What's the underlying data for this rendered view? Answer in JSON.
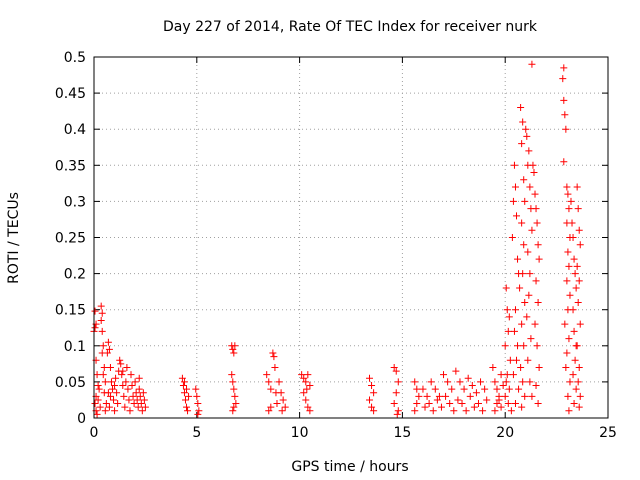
{
  "chart_data": {
    "type": "scatter",
    "title": "Day 227 of 2014, Rate Of TEC Index for receiver nurk",
    "xlabel": "GPS time / hours",
    "ylabel": "ROTI / TECUs",
    "xlim": [
      0,
      25
    ],
    "ylim": [
      0,
      0.5
    ],
    "xticks": [
      0,
      5,
      10,
      15,
      20,
      25
    ],
    "xtick_labels": [
      "0",
      "5",
      "10",
      "15",
      "20",
      "25"
    ],
    "yticks": [
      0,
      0.05,
      0.1,
      0.15,
      0.2,
      0.25,
      0.3,
      0.35,
      0.4,
      0.45,
      0.5
    ],
    "ytick_labels": [
      "0",
      "0.05",
      "0.1",
      "0.15",
      "0.2",
      "0.25",
      "0.3",
      "0.35",
      "0.4",
      "0.45",
      "0.5"
    ],
    "grid": true,
    "marker": "+",
    "color": "#ff0000",
    "series": [
      {
        "name": "ROTI",
        "points": [
          [
            0.0,
            0.12
          ],
          [
            0.05,
            0.125
          ],
          [
            0.1,
            0.13
          ],
          [
            0.05,
            0.148
          ],
          [
            0.1,
            0.08
          ],
          [
            0.15,
            0.06
          ],
          [
            0.2,
            0.045
          ],
          [
            0.1,
            0.03
          ],
          [
            0.05,
            0.02
          ],
          [
            0.1,
            0.01
          ],
          [
            0.15,
            0.005
          ],
          [
            0.2,
            0.025
          ],
          [
            0.25,
            0.04
          ],
          [
            0.3,
            0.015
          ],
          [
            0.35,
            0.155
          ],
          [
            0.4,
            0.145
          ],
          [
            0.35,
            0.135
          ],
          [
            0.4,
            0.12
          ],
          [
            0.45,
            0.1
          ],
          [
            0.4,
            0.09
          ],
          [
            0.5,
            0.07
          ],
          [
            0.55,
            0.05
          ],
          [
            0.5,
            0.035
          ],
          [
            0.6,
            0.02
          ],
          [
            0.55,
            0.01
          ],
          [
            0.45,
            0.06
          ],
          [
            0.65,
            0.09
          ],
          [
            0.7,
            0.105
          ],
          [
            0.75,
            0.095
          ],
          [
            0.8,
            0.07
          ],
          [
            0.85,
            0.05
          ],
          [
            0.8,
            0.03
          ],
          [
            0.75,
            0.015
          ],
          [
            0.9,
            0.04
          ],
          [
            0.95,
            0.025
          ],
          [
            1.0,
            0.01
          ],
          [
            1.05,
            0.055
          ],
          [
            1.1,
            0.035
          ],
          [
            1.15,
            0.02
          ],
          [
            1.2,
            0.065
          ],
          [
            1.25,
            0.08
          ],
          [
            1.3,
            0.075
          ],
          [
            1.35,
            0.06
          ],
          [
            1.4,
            0.045
          ],
          [
            1.45,
            0.03
          ],
          [
            1.5,
            0.015
          ],
          [
            1.55,
            0.05
          ],
          [
            1.6,
            0.07
          ],
          [
            1.65,
            0.04
          ],
          [
            1.7,
            0.025
          ],
          [
            1.75,
            0.01
          ],
          [
            1.8,
            0.06
          ],
          [
            1.85,
            0.045
          ],
          [
            1.9,
            0.03
          ],
          [
            1.95,
            0.02
          ],
          [
            2.0,
            0.05
          ],
          [
            2.05,
            0.035
          ],
          [
            2.1,
            0.025
          ],
          [
            2.15,
            0.015
          ],
          [
            2.2,
            0.04
          ],
          [
            2.25,
            0.03
          ],
          [
            2.3,
            0.02
          ],
          [
            2.35,
            0.01
          ],
          [
            2.4,
            0.035
          ],
          [
            2.45,
            0.025
          ],
          [
            2.5,
            0.015
          ],
          [
            1.4,
            0.065
          ],
          [
            1.0,
            0.045
          ],
          [
            0.7,
            0.035
          ],
          [
            2.2,
            0.055
          ],
          [
            4.3,
            0.055
          ],
          [
            4.35,
            0.045
          ],
          [
            4.4,
            0.035
          ],
          [
            4.45,
            0.025
          ],
          [
            4.5,
            0.015
          ],
          [
            4.55,
            0.01
          ],
          [
            4.4,
            0.05
          ],
          [
            4.5,
            0.04
          ],
          [
            4.6,
            0.03
          ],
          [
            4.95,
            0.04
          ],
          [
            5.0,
            0.03
          ],
          [
            5.05,
            0.02
          ],
          [
            5.1,
            0.01
          ],
          [
            5.05,
            0.005
          ],
          [
            6.7,
            0.1
          ],
          [
            6.75,
            0.095
          ],
          [
            6.8,
            0.09
          ],
          [
            6.85,
            0.1
          ],
          [
            6.7,
            0.06
          ],
          [
            6.75,
            0.05
          ],
          [
            6.8,
            0.04
          ],
          [
            6.85,
            0.03
          ],
          [
            6.9,
            0.02
          ],
          [
            6.8,
            0.015
          ],
          [
            6.75,
            0.01
          ],
          [
            8.4,
            0.06
          ],
          [
            8.5,
            0.05
          ],
          [
            8.6,
            0.04
          ],
          [
            8.7,
            0.09
          ],
          [
            8.75,
            0.085
          ],
          [
            8.8,
            0.07
          ],
          [
            8.85,
            0.035
          ],
          [
            8.9,
            0.02
          ],
          [
            8.6,
            0.015
          ],
          [
            8.5,
            0.01
          ],
          [
            9.0,
            0.05
          ],
          [
            9.1,
            0.035
          ],
          [
            9.2,
            0.025
          ],
          [
            9.3,
            0.015
          ],
          [
            9.15,
            0.01
          ],
          [
            10.1,
            0.06
          ],
          [
            10.2,
            0.055
          ],
          [
            10.3,
            0.05
          ],
          [
            10.4,
            0.06
          ],
          [
            10.5,
            0.045
          ],
          [
            10.2,
            0.035
          ],
          [
            10.3,
            0.025
          ],
          [
            10.4,
            0.015
          ],
          [
            10.5,
            0.01
          ],
          [
            10.35,
            0.04
          ],
          [
            13.4,
            0.055
          ],
          [
            13.5,
            0.045
          ],
          [
            13.6,
            0.035
          ],
          [
            13.4,
            0.025
          ],
          [
            13.5,
            0.015
          ],
          [
            13.6,
            0.01
          ],
          [
            14.6,
            0.07
          ],
          [
            14.7,
            0.065
          ],
          [
            14.8,
            0.05
          ],
          [
            14.7,
            0.035
          ],
          [
            14.6,
            0.02
          ],
          [
            14.8,
            0.01
          ],
          [
            14.75,
            0.005
          ],
          [
            15.6,
            0.05
          ],
          [
            15.7,
            0.04
          ],
          [
            15.8,
            0.03
          ],
          [
            15.7,
            0.02
          ],
          [
            15.6,
            0.01
          ],
          [
            16.0,
            0.04
          ],
          [
            16.2,
            0.03
          ],
          [
            16.4,
            0.05
          ],
          [
            16.6,
            0.04
          ],
          [
            16.8,
            0.03
          ],
          [
            17.0,
            0.06
          ],
          [
            17.2,
            0.05
          ],
          [
            17.4,
            0.04
          ],
          [
            17.6,
            0.065
          ],
          [
            17.8,
            0.05
          ],
          [
            18.0,
            0.04
          ],
          [
            18.2,
            0.055
          ],
          [
            18.4,
            0.045
          ],
          [
            18.6,
            0.035
          ],
          [
            18.8,
            0.05
          ],
          [
            19.0,
            0.04
          ],
          [
            16.1,
            0.015
          ],
          [
            16.3,
            0.02
          ],
          [
            16.5,
            0.01
          ],
          [
            16.7,
            0.025
          ],
          [
            16.9,
            0.015
          ],
          [
            17.1,
            0.03
          ],
          [
            17.3,
            0.02
          ],
          [
            17.5,
            0.01
          ],
          [
            17.7,
            0.025
          ],
          [
            17.9,
            0.02
          ],
          [
            18.1,
            0.01
          ],
          [
            18.3,
            0.03
          ],
          [
            18.5,
            0.015
          ],
          [
            18.7,
            0.02
          ],
          [
            18.9,
            0.01
          ],
          [
            19.1,
            0.025
          ],
          [
            19.4,
            0.07
          ],
          [
            19.5,
            0.05
          ],
          [
            19.6,
            0.04
          ],
          [
            19.7,
            0.03
          ],
          [
            19.8,
            0.06
          ],
          [
            19.9,
            0.045
          ],
          [
            19.6,
            0.02
          ],
          [
            19.8,
            0.015
          ],
          [
            19.5,
            0.01
          ],
          [
            19.7,
            0.025
          ],
          [
            20.0,
            0.1
          ],
          [
            20.05,
            0.18
          ],
          [
            20.1,
            0.15
          ],
          [
            20.15,
            0.12
          ],
          [
            20.2,
            0.14
          ],
          [
            20.25,
            0.08
          ],
          [
            20.1,
            0.06
          ],
          [
            20.2,
            0.04
          ],
          [
            20.0,
            0.03
          ],
          [
            20.15,
            0.02
          ],
          [
            20.3,
            0.01
          ],
          [
            20.05,
            0.05
          ],
          [
            20.35,
            0.25
          ],
          [
            20.4,
            0.3
          ],
          [
            20.45,
            0.35
          ],
          [
            20.5,
            0.32
          ],
          [
            20.55,
            0.28
          ],
          [
            20.6,
            0.22
          ],
          [
            20.65,
            0.2
          ],
          [
            20.7,
            0.18
          ],
          [
            20.5,
            0.15
          ],
          [
            20.45,
            0.12
          ],
          [
            20.6,
            0.1
          ],
          [
            20.55,
            0.08
          ],
          [
            20.4,
            0.06
          ],
          [
            20.65,
            0.04
          ],
          [
            20.5,
            0.02
          ],
          [
            20.75,
            0.43
          ],
          [
            20.8,
            0.38
          ],
          [
            20.85,
            0.41
          ],
          [
            20.9,
            0.33
          ],
          [
            20.95,
            0.3
          ],
          [
            20.8,
            0.27
          ],
          [
            20.9,
            0.24
          ],
          [
            20.85,
            0.2
          ],
          [
            20.95,
            0.16
          ],
          [
            20.8,
            0.13
          ],
          [
            20.9,
            0.1
          ],
          [
            20.75,
            0.07
          ],
          [
            20.85,
            0.05
          ],
          [
            20.95,
            0.03
          ],
          [
            20.8,
            0.015
          ],
          [
            21.0,
            0.4
          ],
          [
            21.05,
            0.39
          ],
          [
            21.1,
            0.35
          ],
          [
            21.15,
            0.37
          ],
          [
            21.2,
            0.32
          ],
          [
            21.25,
            0.29
          ],
          [
            21.3,
            0.26
          ],
          [
            21.1,
            0.23
          ],
          [
            21.2,
            0.2
          ],
          [
            21.15,
            0.17
          ],
          [
            21.05,
            0.14
          ],
          [
            21.25,
            0.11
          ],
          [
            21.1,
            0.08
          ],
          [
            21.2,
            0.05
          ],
          [
            21.3,
            0.03
          ],
          [
            21.3,
            0.49
          ],
          [
            21.35,
            0.35
          ],
          [
            21.4,
            0.34
          ],
          [
            21.45,
            0.31
          ],
          [
            21.5,
            0.29
          ],
          [
            21.55,
            0.27
          ],
          [
            21.6,
            0.24
          ],
          [
            21.65,
            0.22
          ],
          [
            21.5,
            0.19
          ],
          [
            21.6,
            0.16
          ],
          [
            21.45,
            0.13
          ],
          [
            21.55,
            0.1
          ],
          [
            21.65,
            0.07
          ],
          [
            21.5,
            0.045
          ],
          [
            21.6,
            0.02
          ],
          [
            22.8,
            0.47
          ],
          [
            22.85,
            0.44
          ],
          [
            22.9,
            0.42
          ],
          [
            22.95,
            0.4
          ],
          [
            22.85,
            0.355
          ],
          [
            23.0,
            0.32
          ],
          [
            23.05,
            0.31
          ],
          [
            23.1,
            0.29
          ],
          [
            23.0,
            0.27
          ],
          [
            23.15,
            0.25
          ],
          [
            23.05,
            0.23
          ],
          [
            23.1,
            0.21
          ],
          [
            23.0,
            0.19
          ],
          [
            23.15,
            0.17
          ],
          [
            23.05,
            0.15
          ],
          [
            22.9,
            0.13
          ],
          [
            23.1,
            0.11
          ],
          [
            23.0,
            0.09
          ],
          [
            22.95,
            0.07
          ],
          [
            23.15,
            0.05
          ],
          [
            23.05,
            0.03
          ],
          [
            23.1,
            0.01
          ],
          [
            22.85,
            0.485
          ],
          [
            23.2,
            0.3
          ],
          [
            23.25,
            0.27
          ],
          [
            23.3,
            0.25
          ],
          [
            23.35,
            0.22
          ],
          [
            23.4,
            0.2
          ],
          [
            23.45,
            0.18
          ],
          [
            23.3,
            0.15
          ],
          [
            23.35,
            0.12
          ],
          [
            23.45,
            0.1
          ],
          [
            23.4,
            0.08
          ],
          [
            23.3,
            0.06
          ],
          [
            23.45,
            0.04
          ],
          [
            23.35,
            0.02
          ],
          [
            23.5,
            0.32
          ],
          [
            23.55,
            0.29
          ],
          [
            23.6,
            0.26
          ],
          [
            23.65,
            0.24
          ],
          [
            23.5,
            0.21
          ],
          [
            23.6,
            0.19
          ],
          [
            23.55,
            0.16
          ],
          [
            23.65,
            0.13
          ],
          [
            23.5,
            0.1
          ],
          [
            23.6,
            0.07
          ],
          [
            23.55,
            0.05
          ],
          [
            23.65,
            0.03
          ],
          [
            23.6,
            0.015
          ]
        ]
      }
    ]
  }
}
